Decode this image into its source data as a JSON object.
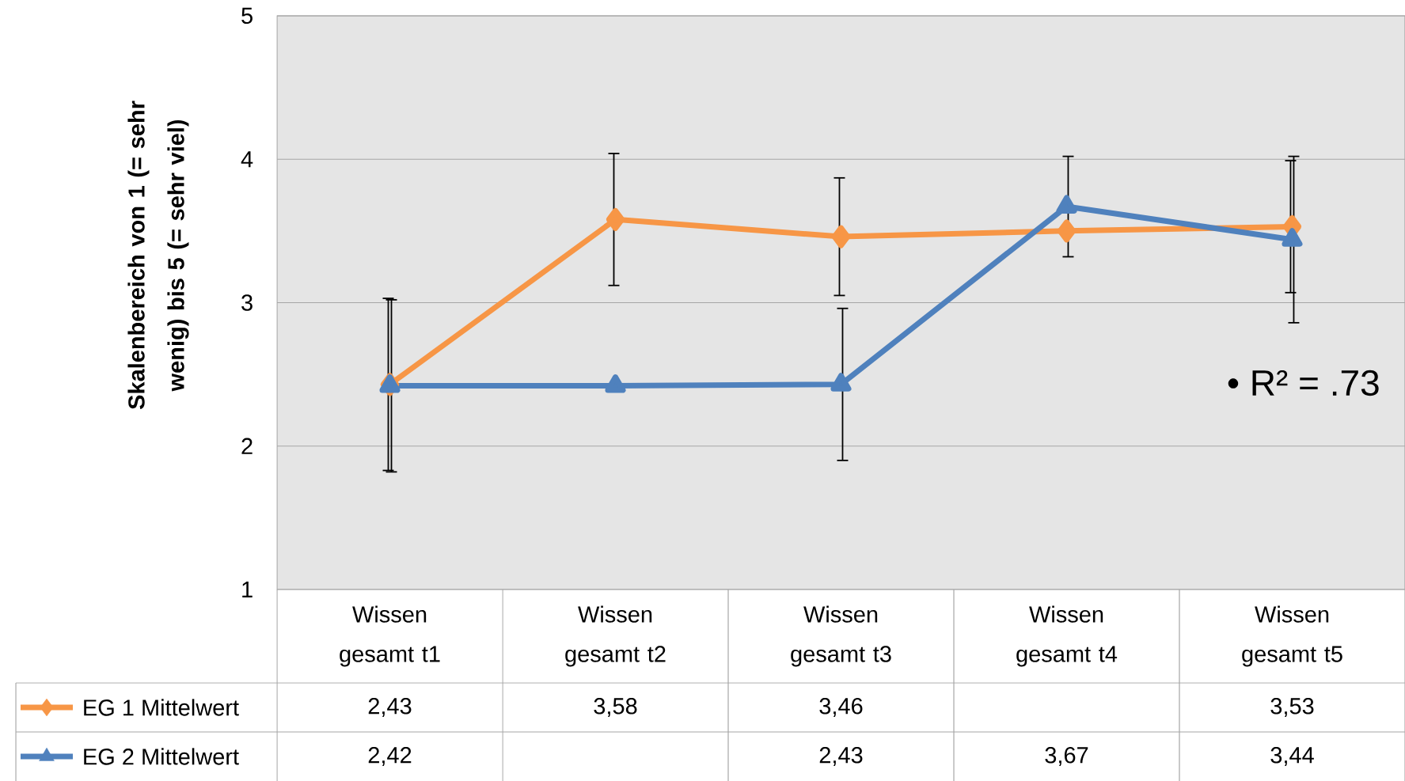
{
  "chart_data": {
    "type": "line",
    "ylabel": "Skalenbereich von 1 (= sehr wenig) bis 5 (= sehr viel)",
    "categories": [
      "Wissen gesamt t1",
      "Wissen gesamt t2",
      "Wissen gesamt t3",
      "Wissen gesamt t4",
      "Wissen gesamt t5"
    ],
    "series": [
      {
        "name": "EG 1 Mittelwert",
        "color": "#f79646",
        "marker": "diamond",
        "values": [
          2.43,
          3.58,
          3.46,
          3.5,
          3.53
        ],
        "value_labels": [
          "2,43",
          "3,58",
          "3,46",
          null,
          "3,53"
        ],
        "errors": [
          0.6,
          0.46,
          0.41,
          null,
          0.46
        ]
      },
      {
        "name": "EG 2 Mittelwert",
        "color": "#4f81bd",
        "marker": "triangle",
        "values": [
          2.42,
          2.42,
          2.43,
          3.67,
          3.44
        ],
        "value_labels": [
          "2,42",
          null,
          "2,43",
          "3,67",
          "3,44"
        ],
        "errors": [
          0.6,
          null,
          0.53,
          0.35,
          0.58
        ]
      }
    ],
    "ylim": [
      1,
      5
    ],
    "yticks": [
      1,
      2,
      3,
      4,
      5
    ],
    "grid": "y",
    "legend": "bottom",
    "tick_labels": "y",
    "annotations": [
      "• R² = .73"
    ]
  }
}
